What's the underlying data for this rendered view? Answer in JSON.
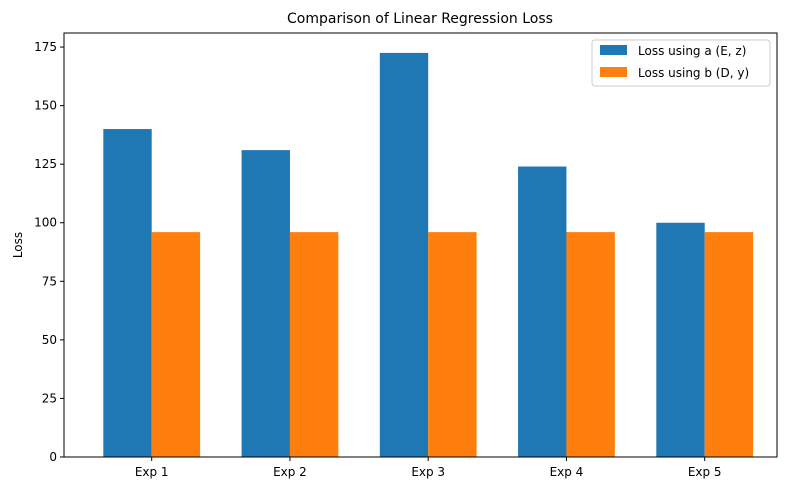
{
  "chart_data": {
    "type": "bar",
    "title": "Comparison of Linear Regression Loss",
    "xlabel": "",
    "ylabel": "Loss",
    "categories": [
      "Exp 1",
      "Exp 2",
      "Exp 3",
      "Exp 4",
      "Exp 5"
    ],
    "series": [
      {
        "name": "Loss using a (E, z)",
        "color": "#1f77b4",
        "values": [
          140,
          131,
          172.5,
          124,
          100
        ]
      },
      {
        "name": "Loss using b (D, y)",
        "color": "#ff7f0e",
        "values": [
          96,
          96,
          96,
          96,
          96
        ]
      }
    ],
    "ylim": [
      0,
      181
    ],
    "yticks": [
      0,
      25,
      50,
      75,
      100,
      125,
      150,
      175
    ],
    "grid": false,
    "legend_position": "top-right"
  }
}
